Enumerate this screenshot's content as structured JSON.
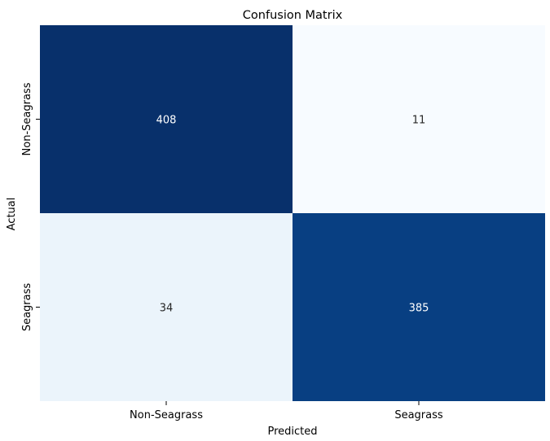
{
  "chart_data": {
    "type": "heatmap",
    "title": "Confusion Matrix",
    "xlabel": "Predicted",
    "ylabel": "Actual",
    "x_categories": [
      "Non-Seagrass",
      "Seagrass"
    ],
    "y_categories": [
      "Non-Seagrass",
      "Seagrass"
    ],
    "values": [
      [
        408,
        11
      ],
      [
        34,
        385
      ]
    ],
    "colormap": "Blues",
    "colorbar": false,
    "annotations": true,
    "colors": {
      "low": "#f7fbff",
      "high": "#08306b",
      "text_dark_bg": "#ffffff",
      "text_light_bg": "#262626"
    }
  }
}
